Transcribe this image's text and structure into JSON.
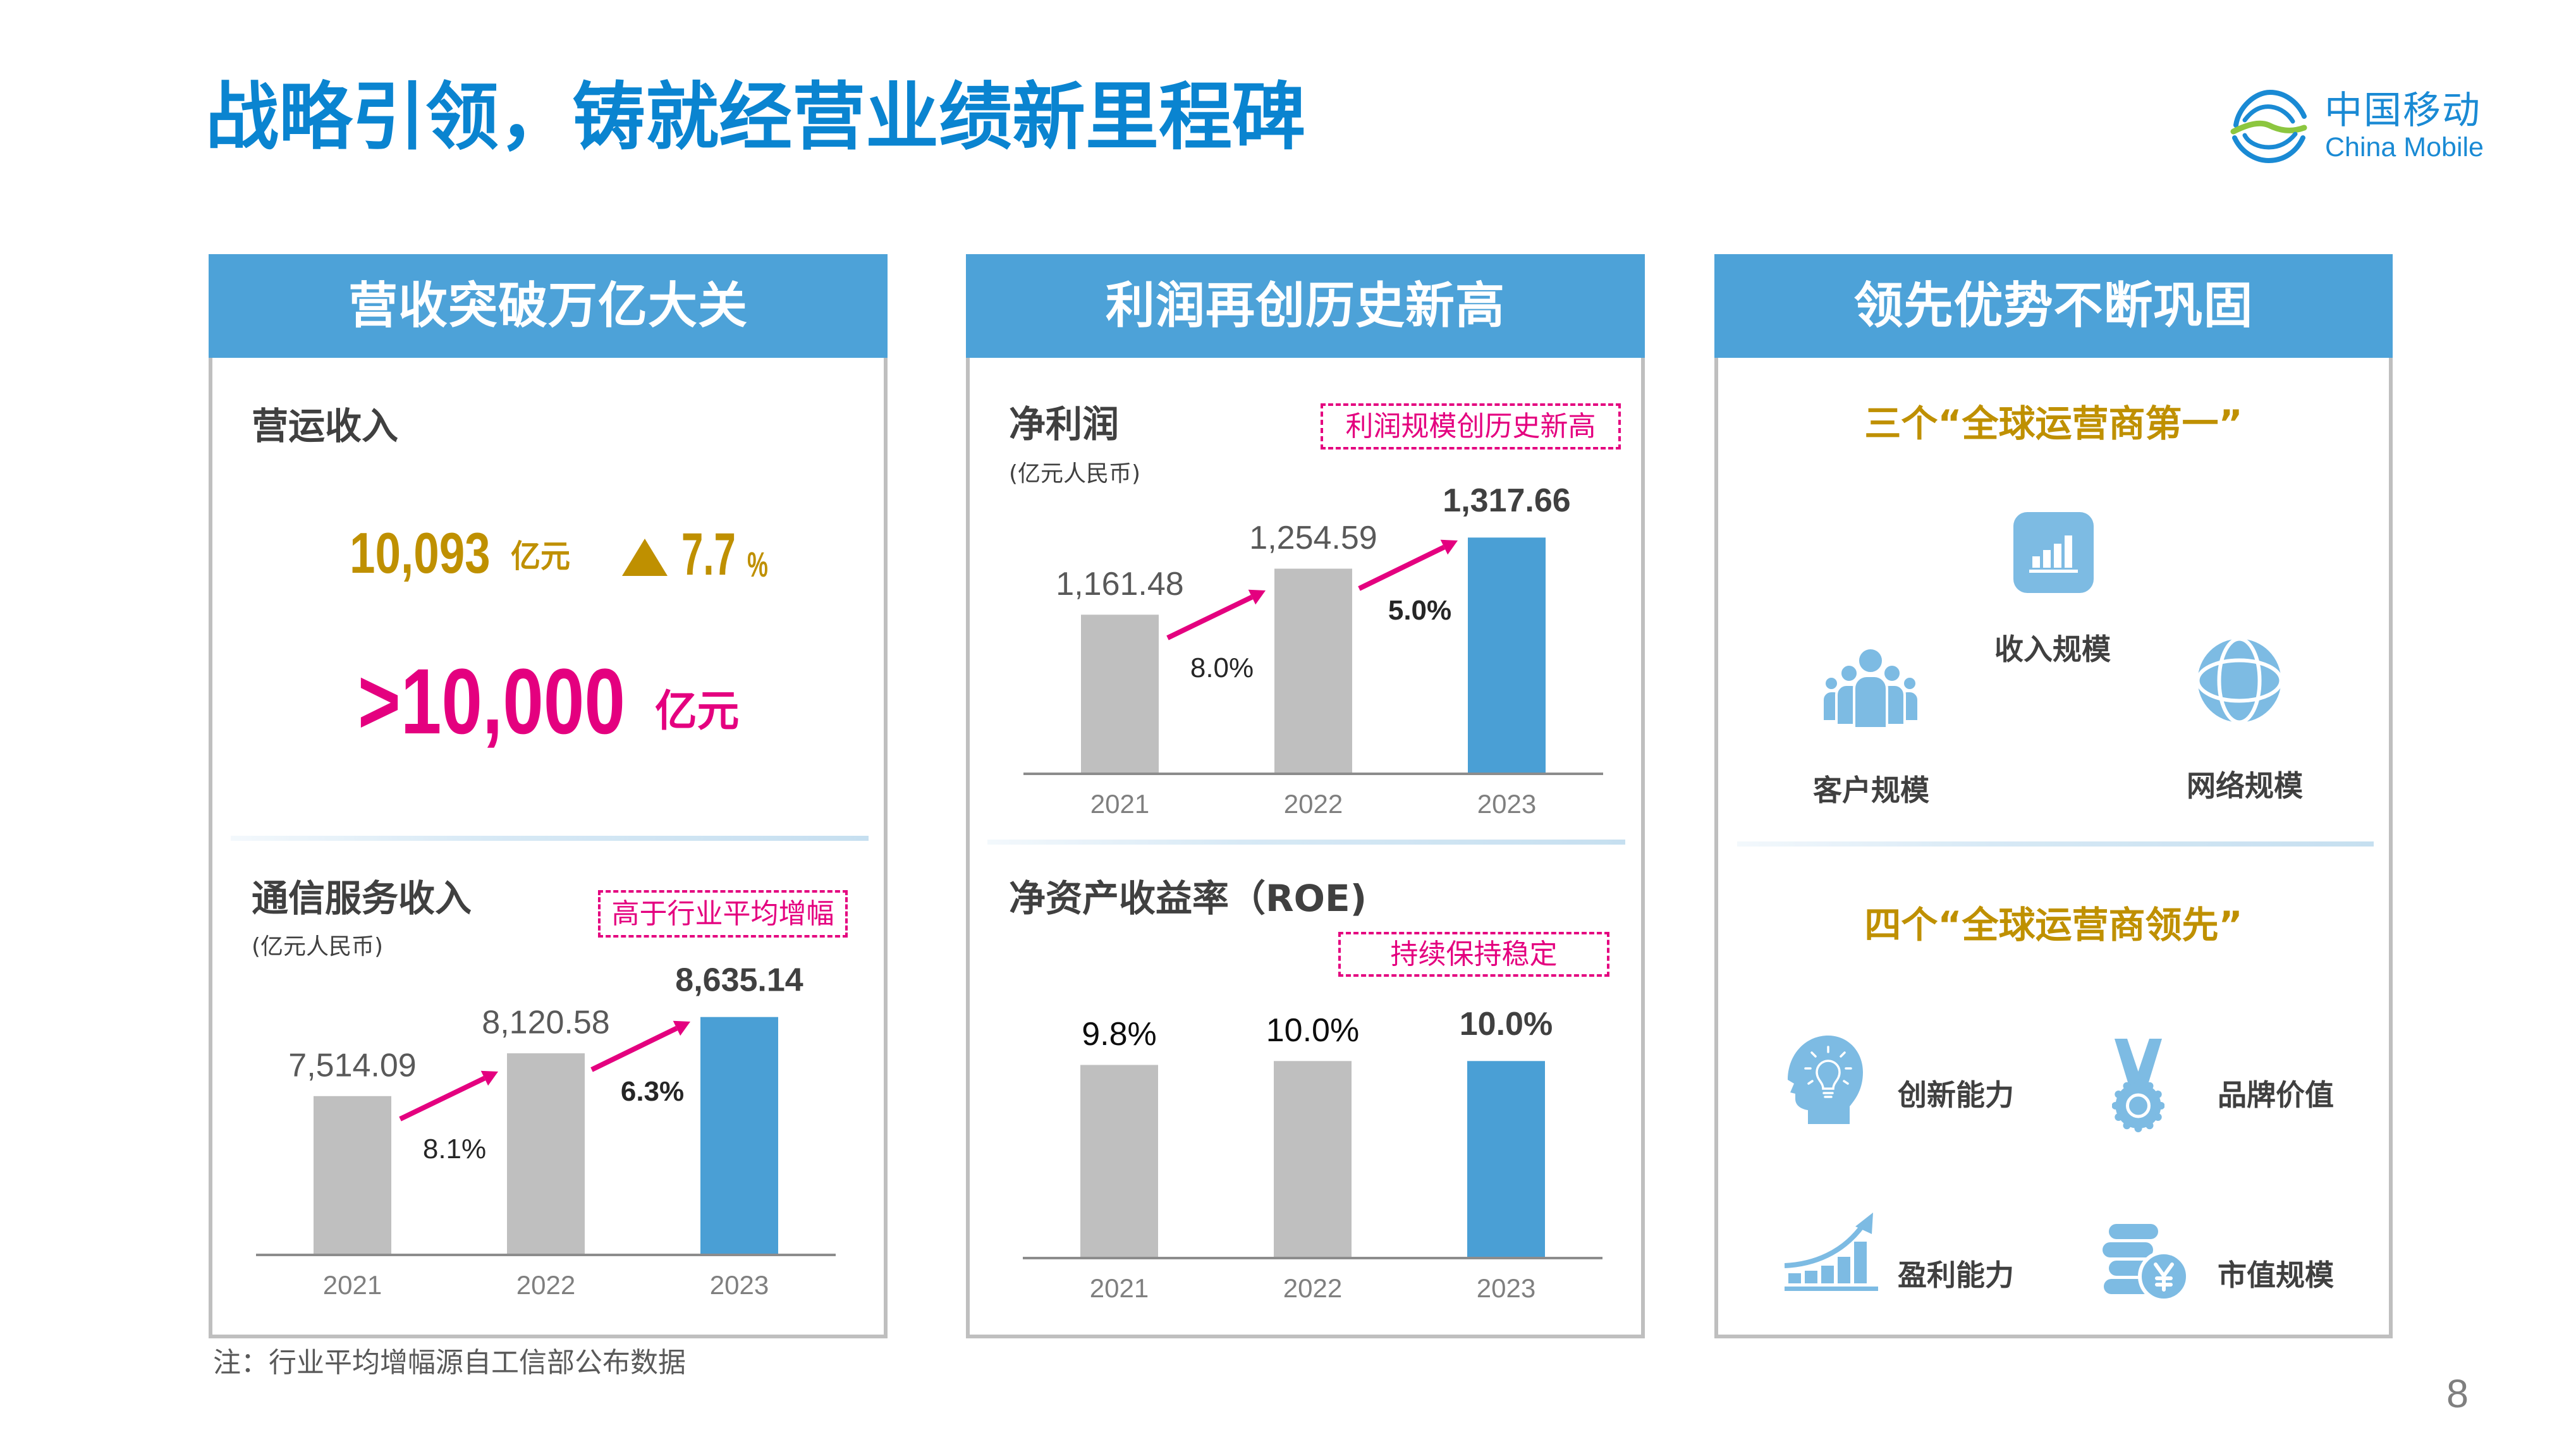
{
  "header": {
    "title": "战略引领，铸就经营业绩新里程碑",
    "logo": {
      "name_cn": "中国移动",
      "name_en": "China Mobile"
    }
  },
  "colors": {
    "title": "#0a84d0",
    "panel_header": "#4da2d8",
    "gold": "#bf9000",
    "magenta": "#e4007f",
    "bar_gray": "#bfbfbf",
    "bar_highlight": "#4a9fd5",
    "icon_blue": "#7dbbe3",
    "logo_blue": "#1a8ad4",
    "logo_green": "#8cc63f",
    "axis": "#8c8c8c",
    "year_label": "#7f7f7f",
    "growth_label": "#262626",
    "highlight_label": "#404040"
  },
  "panels": {
    "revenue": {
      "header": "营收突破万亿大关",
      "operating_revenue": {
        "label": "营运收入",
        "value": "10,093",
        "value_unit": "亿元",
        "growth_icon": "up-triangle-icon",
        "growth": "7.7",
        "growth_unit": "%",
        "milestone": ">10,000",
        "milestone_unit": "亿元"
      }
    },
    "profit": {
      "header": "利润再创历史新高"
    },
    "leadership": {
      "header": "领先优势不断巩固",
      "three_firsts": {
        "heading": "三个“全球运营商第一”",
        "items": [
          {
            "icon": "bar-chart-icon",
            "label": "收入规模"
          },
          {
            "icon": "people-icon",
            "label": "客户规模"
          },
          {
            "icon": "globe-icon",
            "label": "网络规模"
          }
        ]
      },
      "four_leads": {
        "heading": "四个“全球运营商领先”",
        "items": [
          {
            "icon": "head-lightbulb-icon",
            "label": "创新能力"
          },
          {
            "icon": "medal-icon",
            "label": "品牌价值"
          },
          {
            "icon": "rising-chart-icon",
            "label": "盈利能力"
          },
          {
            "icon": "coins-yuan-icon",
            "label": "市值规模"
          }
        ]
      }
    }
  },
  "footer": {
    "note": "注：行业平均增幅源自工信部公布数据",
    "page_number": "8"
  },
  "chart_data": [
    {
      "type": "bar",
      "title": "通信服务收入",
      "unit_note": "(亿元人民币)",
      "callout": "高于行业平均增幅",
      "categories": [
        "2021",
        "2022",
        "2023"
      ],
      "values": [
        7514.09,
        8120.58,
        8635.14
      ],
      "value_labels": [
        "7,514.09",
        "8,120.58",
        "8,635.14"
      ],
      "highlight_index": 2,
      "growth_annotations": [
        {
          "from": "2021",
          "to": "2022",
          "value": 8.1,
          "label": "8.1%"
        },
        {
          "from": "2022",
          "to": "2023",
          "value": 6.3,
          "label": "6.3%"
        }
      ],
      "xlabel": "",
      "ylabel": "",
      "ylim": [
        5280,
        9000
      ],
      "grid": false,
      "legend": "none",
      "value_label_color": "#595959"
    },
    {
      "type": "bar",
      "title": "净利润",
      "unit_note": "(亿元人民币)",
      "callout": "利润规模创历史新高",
      "categories": [
        "2021",
        "2022",
        "2023"
      ],
      "values": [
        1161.48,
        1254.59,
        1317.66
      ],
      "value_labels": [
        "1,161.48",
        "1,254.59",
        "1,317.66"
      ],
      "highlight_index": 2,
      "growth_annotations": [
        {
          "from": "2021",
          "to": "2022",
          "value": 8.0,
          "label": "8.0%"
        },
        {
          "from": "2022",
          "to": "2023",
          "value": 5.0,
          "label": "5.0%"
        }
      ],
      "xlabel": "",
      "ylabel": "",
      "ylim": [
        842,
        1373
      ],
      "grid": false,
      "legend": "none",
      "value_label_color": "#595959"
    },
    {
      "type": "bar",
      "title": "净资产收益率（ROE)",
      "callout": "持续保持稳定",
      "categories": [
        "2021",
        "2022",
        "2023"
      ],
      "values": [
        9.8,
        10.0,
        10.0
      ],
      "value_labels": [
        "9.8%",
        "10.0%",
        "10.0%"
      ],
      "highlight_index": 2,
      "growth_annotations": [],
      "xlabel": "",
      "ylabel": "",
      "ylim": [
        0,
        13.4
      ],
      "grid": false,
      "legend": "none",
      "value_label_color": "#0d0d0d"
    }
  ]
}
